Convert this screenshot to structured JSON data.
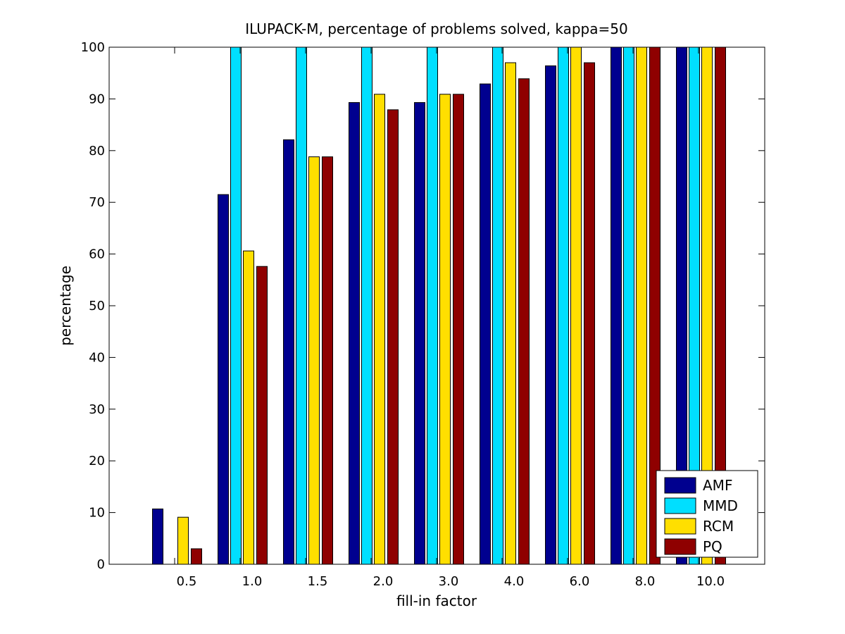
{
  "chart_data": {
    "type": "bar",
    "title": "ILUPACK-M, percentage of problems solved, kappa=50",
    "xlabel": "fill-in factor",
    "ylabel": "percentage",
    "categories": [
      "0.5",
      "1.0",
      "1.5",
      "2.0",
      "3.0",
      "4.0",
      "6.0",
      "8.0",
      "10.0"
    ],
    "ylim": [
      0,
      100
    ],
    "yticks": [
      0,
      10,
      20,
      30,
      40,
      50,
      60,
      70,
      80,
      90,
      100
    ],
    "grid": false,
    "legend_position": "bottom-right",
    "series": [
      {
        "name": "AMF",
        "color": "#00008f",
        "values": [
          10.7,
          71.5,
          82.1,
          89.3,
          89.3,
          92.9,
          96.4,
          100,
          100
        ]
      },
      {
        "name": "MMD",
        "color": "#00dfff",
        "values": [
          0,
          100,
          100,
          100,
          100,
          100,
          100,
          100,
          100
        ]
      },
      {
        "name": "RCM",
        "color": "#ffdf00",
        "values": [
          9.1,
          60.6,
          78.8,
          90.9,
          90.9,
          97.0,
          100,
          100,
          100
        ]
      },
      {
        "name": "PQ",
        "color": "#8f0000",
        "values": [
          3.0,
          57.6,
          78.8,
          87.9,
          90.9,
          93.9,
          97.0,
          100,
          100
        ]
      }
    ]
  }
}
